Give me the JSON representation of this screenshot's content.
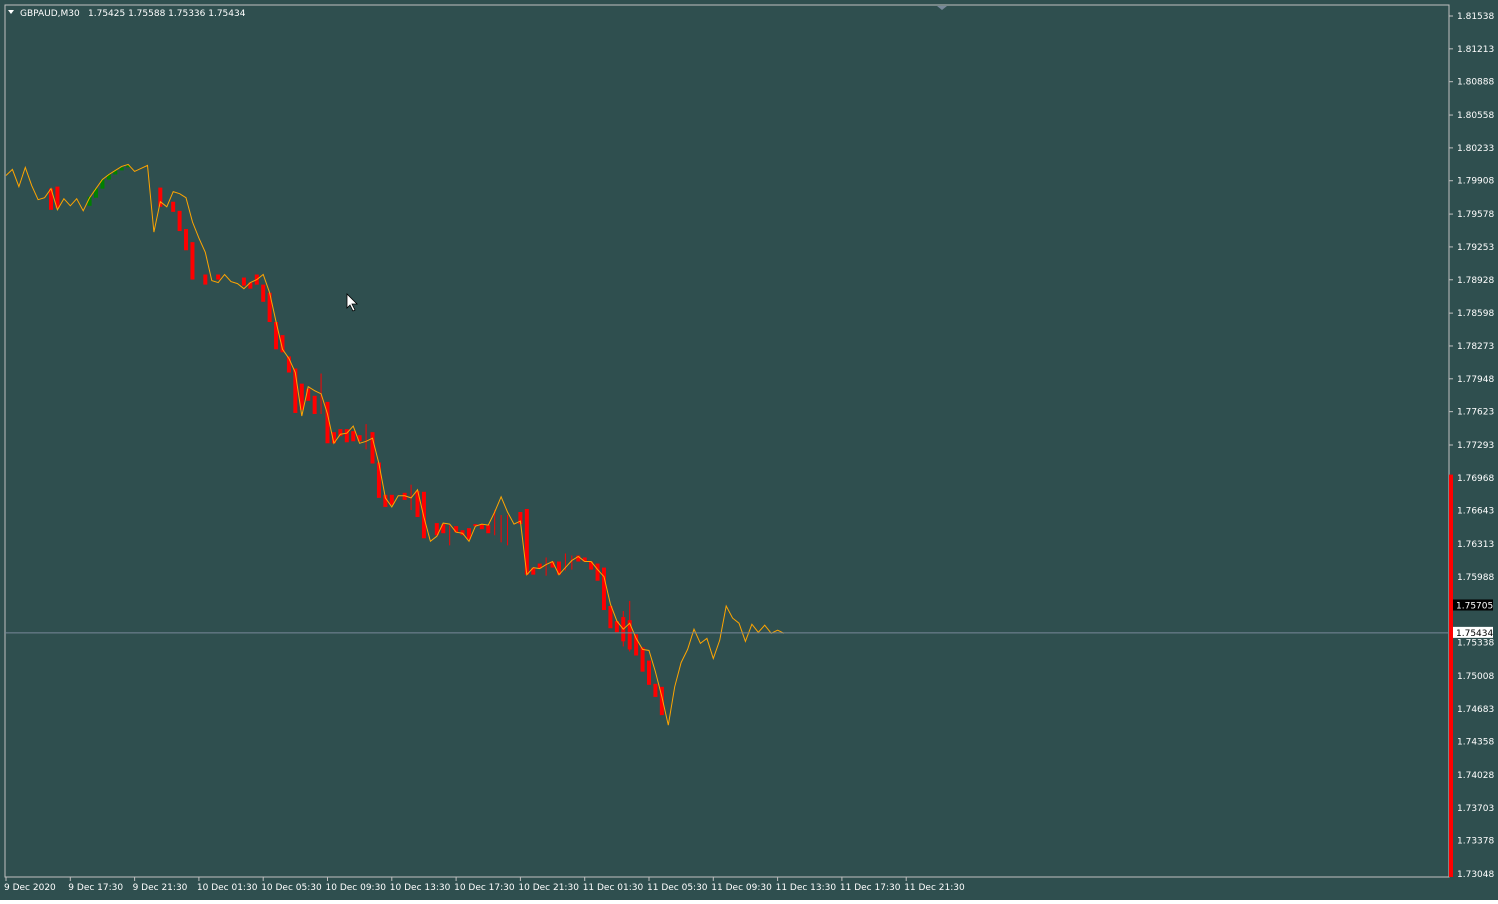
{
  "header": {
    "menu_icon": "triangle-down-icon",
    "symbol_text": "GBPAUD,M30",
    "ohlc_text": "1.75425 1.75588 1.75336 1.75434"
  },
  "price_axis": {
    "labels": [
      "1.81538",
      "1.81213",
      "1.80888",
      "1.80558",
      "1.80233",
      "1.79908",
      "1.79578",
      "1.79253",
      "1.78928",
      "1.78598",
      "1.78273",
      "1.77948",
      "1.77623",
      "1.77293",
      "1.76968",
      "1.76643",
      "1.76313",
      "1.75988",
      "1.75338",
      "1.75008",
      "1.74683",
      "1.74358",
      "1.74028",
      "1.73703",
      "1.73378",
      "1.73048"
    ],
    "label_prices": [
      1.81538,
      1.81213,
      1.80888,
      1.80558,
      1.80233,
      1.79908,
      1.79578,
      1.79253,
      1.78928,
      1.78598,
      1.78273,
      1.77948,
      1.77623,
      1.77293,
      1.76968,
      1.76643,
      1.76313,
      1.75988,
      1.75338,
      1.75008,
      1.74683,
      1.74358,
      1.74028,
      1.73703,
      1.73378,
      1.73048
    ],
    "marker_ask_text": "1.75705",
    "marker_bid_text": "1.75434",
    "marker_ask_price": 1.75705,
    "marker_bid_price": 1.75434,
    "side_bar_top_price": 1.77
  },
  "time_axis": {
    "labels": [
      "9 Dec 2020",
      "9 Dec 17:30",
      "9 Dec 21:30",
      "10 Dec 01:30",
      "10 Dec 05:30",
      "10 Dec 09:30",
      "10 Dec 13:30",
      "10 Dec 17:30",
      "10 Dec 21:30",
      "11 Dec 01:30",
      "11 Dec 05:30",
      "11 Dec 09:30",
      "11 Dec 13:30",
      "11 Dec 17:30",
      "11 Dec 21:30"
    ]
  },
  "colors": {
    "background": "#2f4f4f",
    "frame": "#c0c0c0",
    "text": "#ffffff",
    "line": "#ffa500",
    "bear": "#ff0000",
    "bull": "#008000",
    "bid_line": "#778899",
    "side_bar": "#ff0000",
    "marker_ask_bg": "#000000"
  },
  "chart_data": {
    "type": "line",
    "symbol": "GBPAUD",
    "timeframe": "M30",
    "ylim": [
      1.73048,
      1.81538
    ],
    "grid": false,
    "xlabel": "",
    "ylabel": "",
    "x_start": "9 Dec 2020",
    "bar_interval_minutes": 30,
    "series": [
      {
        "values": [
          1.7996,
          1.8002,
          1.7985,
          1.8004,
          1.7986,
          1.7972,
          1.7974,
          1.7983,
          1.7962,
          1.7973,
          1.7966,
          1.7973,
          1.7961,
          1.7974,
          1.7983,
          1.7992,
          1.7997,
          1.8001,
          1.8005,
          1.8007,
          1.8,
          1.8003,
          1.8006,
          1.794,
          1.797,
          1.7965,
          1.798,
          1.7978,
          1.7974,
          1.795,
          1.7934,
          1.792,
          1.7892,
          1.789,
          1.7898,
          1.7891,
          1.7889,
          1.7884,
          1.789,
          1.7893,
          1.7898,
          1.788,
          1.7851,
          1.7824,
          1.7815,
          1.7801,
          1.7758,
          1.7787,
          1.7783,
          1.778,
          1.776,
          1.7731,
          1.774,
          1.7741,
          1.7748,
          1.7731,
          1.7733,
          1.7736,
          1.7711,
          1.7677,
          1.7668,
          1.7679,
          1.7679,
          1.7677,
          1.7685,
          1.7658,
          1.7634,
          1.7639,
          1.7652,
          1.7651,
          1.7643,
          1.7642,
          1.7634,
          1.7649,
          1.7651,
          1.765,
          1.7663,
          1.7678,
          1.7663,
          1.7651,
          1.7654,
          1.7601,
          1.7608,
          1.7607,
          1.7611,
          1.7614,
          1.7601,
          1.7608,
          1.7615,
          1.7619,
          1.7614,
          1.7614,
          1.7606,
          1.7599,
          1.7572,
          1.7555,
          1.7547,
          1.7553,
          1.7538,
          1.7527,
          1.7526,
          1.7505,
          1.748,
          1.7452,
          1.749,
          1.7514,
          1.7527,
          1.7547,
          1.7533,
          1.7538,
          1.7518,
          1.7536,
          1.757,
          1.7558,
          1.7553,
          1.7535,
          1.7552,
          1.7544,
          1.7551,
          1.7543,
          1.7546,
          1.7543
        ]
      }
    ],
    "candles": {
      "bearish": [
        [
          7,
          1.7983,
          1.7962
        ],
        [
          8,
          1.7985,
          1.7964
        ],
        [
          24,
          1.7984,
          1.7965
        ],
        [
          26,
          1.797,
          1.796
        ],
        [
          27,
          1.7961,
          1.7941
        ],
        [
          28,
          1.7943,
          1.7922
        ],
        [
          29,
          1.793,
          1.7893
        ],
        [
          31,
          1.7898,
          1.7888
        ],
        [
          33,
          1.7898,
          1.7893
        ],
        [
          37,
          1.7895,
          1.7887
        ],
        [
          38,
          1.789,
          1.7884
        ],
        [
          39,
          1.7898,
          1.7888
        ],
        [
          40,
          1.7888,
          1.7871
        ],
        [
          41,
          1.788,
          1.7851
        ],
        [
          42,
          1.7851,
          1.7824
        ],
        [
          43,
          1.7838,
          1.7821
        ],
        [
          44,
          1.7817,
          1.7801
        ],
        [
          45,
          1.7805,
          1.7761
        ],
        [
          46,
          1.779,
          1.7764
        ],
        [
          47,
          1.7785,
          1.7773
        ],
        [
          48,
          1.7778,
          1.776
        ],
        [
          50,
          1.7772,
          1.7731
        ],
        [
          51,
          1.7742,
          1.7731
        ],
        [
          52,
          1.7745,
          1.7738
        ],
        [
          53,
          1.7745,
          1.7732
        ],
        [
          54,
          1.7743,
          1.7733
        ],
        [
          55,
          1.7739,
          1.7733
        ],
        [
          57,
          1.7742,
          1.7711
        ],
        [
          58,
          1.7712,
          1.7677
        ],
        [
          59,
          1.768,
          1.7668
        ],
        [
          60,
          1.768,
          1.767
        ],
        [
          62,
          1.7682,
          1.7675
        ],
        [
          64,
          1.7684,
          1.7658
        ],
        [
          65,
          1.7683,
          1.7637
        ],
        [
          67,
          1.7652,
          1.764
        ],
        [
          68,
          1.7651,
          1.7642
        ],
        [
          70,
          1.7649,
          1.7643
        ],
        [
          71,
          1.7645,
          1.764
        ],
        [
          72,
          1.7647,
          1.7636
        ],
        [
          73,
          1.7651,
          1.7649
        ],
        [
          74,
          1.7651,
          1.7646
        ],
        [
          75,
          1.765,
          1.7642
        ],
        [
          80,
          1.7663,
          1.7651
        ],
        [
          81,
          1.7666,
          1.7601
        ],
        [
          82,
          1.7608,
          1.7601
        ],
        [
          83,
          1.7612,
          1.7607
        ],
        [
          85,
          1.7614,
          1.7608
        ],
        [
          86,
          1.7614,
          1.7601
        ],
        [
          89,
          1.762,
          1.7614
        ],
        [
          90,
          1.7618,
          1.7614
        ],
        [
          91,
          1.7614,
          1.7606
        ],
        [
          92,
          1.7612,
          1.7595
        ],
        [
          93,
          1.7608,
          1.7566
        ],
        [
          94,
          1.757,
          1.7548
        ],
        [
          95,
          1.7555,
          1.7544
        ],
        [
          96,
          1.7559,
          1.7535
        ],
        [
          97,
          1.7556,
          1.7527
        ],
        [
          98,
          1.7542,
          1.7521
        ],
        [
          99,
          1.7529,
          1.7505
        ],
        [
          100,
          1.7516,
          1.7492
        ],
        [
          101,
          1.7493,
          1.748
        ],
        [
          102,
          1.749,
          1.7462
        ]
      ],
      "bullish": [
        [
          13,
          1.7966,
          1.7975
        ],
        [
          14,
          1.7974,
          1.7983
        ],
        [
          15,
          1.7983,
          1.7992
        ],
        [
          16,
          1.7992,
          1.7997
        ],
        [
          17,
          1.7997,
          1.8001
        ],
        [
          18,
          1.8001,
          1.8004
        ],
        [
          19,
          1.8004,
          1.8006
        ]
      ],
      "wicks": [
        [
          49,
          1.78,
          1.776
        ],
        [
          56,
          1.775,
          1.7725
        ],
        [
          63,
          1.769,
          1.7665
        ],
        [
          69,
          1.765,
          1.763
        ],
        [
          76,
          1.7665,
          1.764
        ],
        [
          77,
          1.766,
          1.7633
        ],
        [
          78,
          1.766,
          1.763
        ],
        [
          84,
          1.7618,
          1.76
        ],
        [
          87,
          1.7622,
          1.7605
        ],
        [
          88,
          1.762,
          1.7606
        ],
        [
          96,
          1.7565,
          1.753
        ],
        [
          97,
          1.7575,
          1.7525
        ]
      ]
    }
  }
}
